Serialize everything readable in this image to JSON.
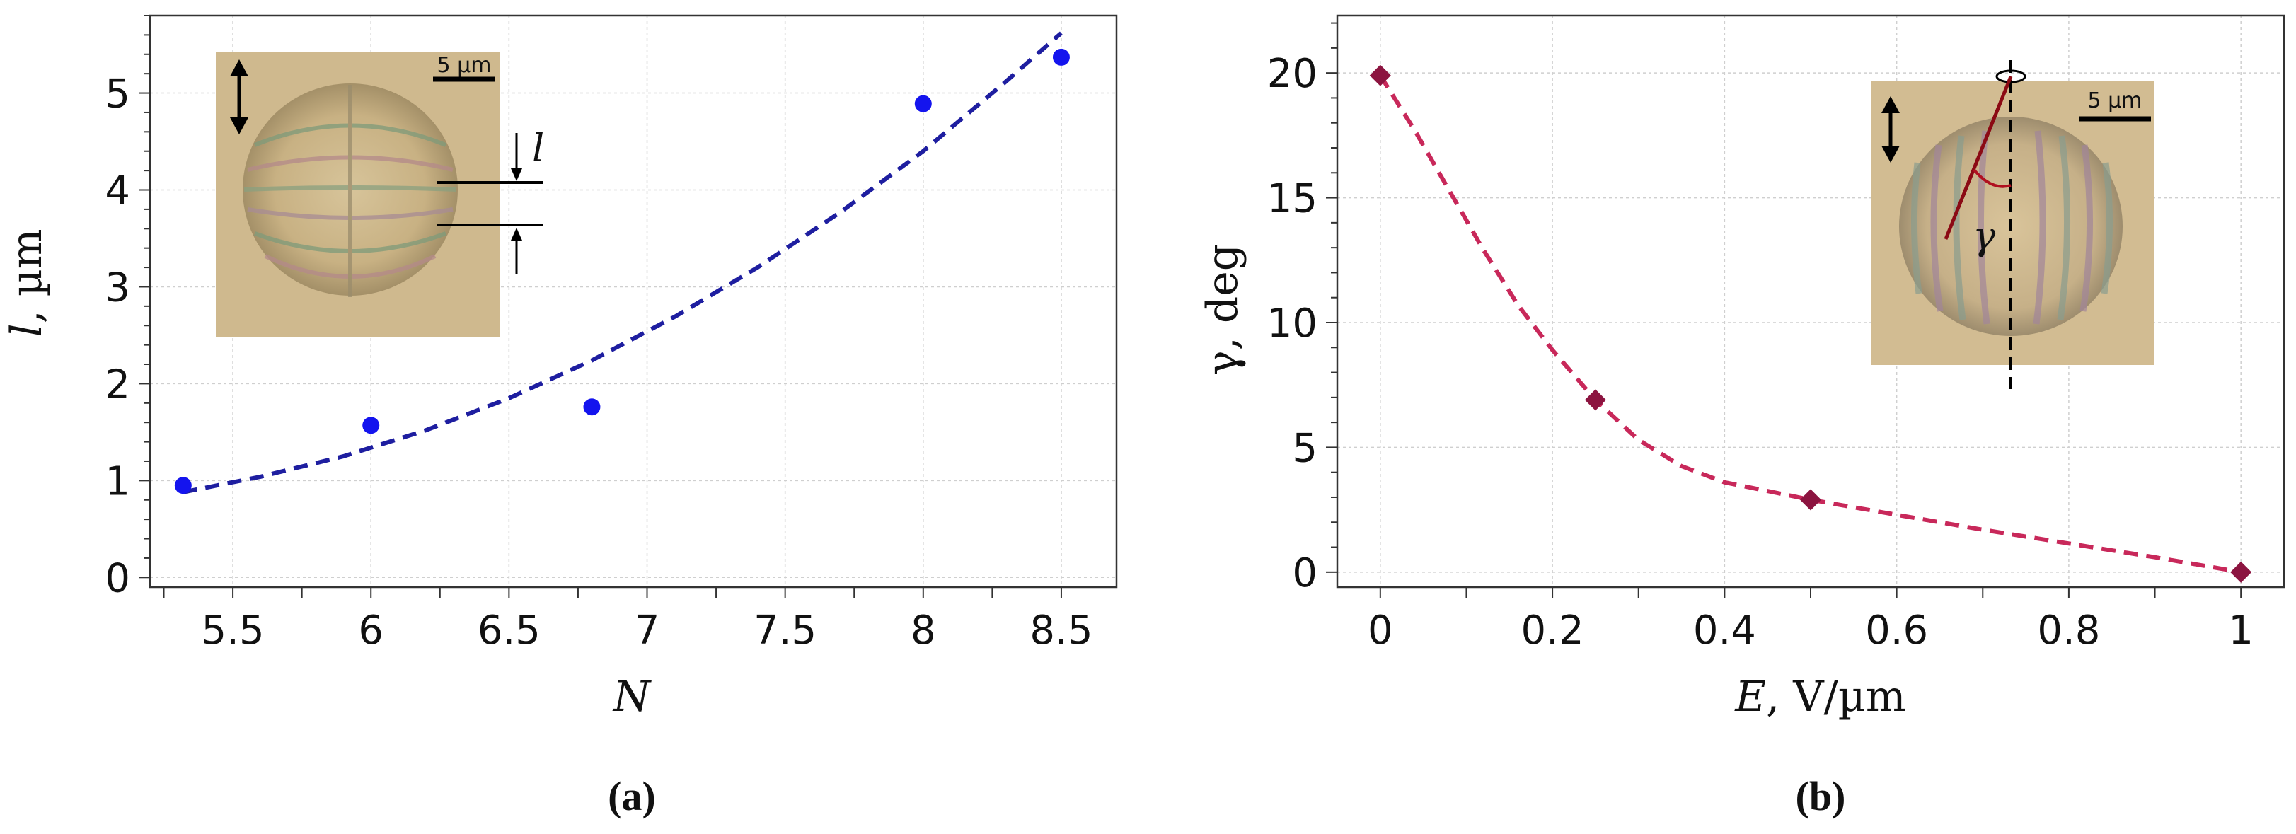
{
  "chart_data": [
    {
      "id": "a",
      "type": "scatter",
      "panel_label_prefix": "(",
      "panel_label_letter": "a",
      "panel_label_suffix": ")",
      "xlabel": "N",
      "ylabel_var": "l",
      "ylabel_unit": ", µm",
      "xlim": [
        5.2,
        8.7
      ],
      "ylim": [
        -0.1,
        5.8
      ],
      "xticks": [
        5.5,
        6,
        6.5,
        7,
        7.5,
        8,
        8.5
      ],
      "xtick_labels": [
        "5.5",
        "6",
        "6.5",
        "7",
        "7.5",
        "8",
        "8.5"
      ],
      "yticks": [
        0,
        1,
        2,
        3,
        4,
        5
      ],
      "ytick_labels": [
        "0",
        "1",
        "2",
        "3",
        "4",
        "5"
      ],
      "grid": true,
      "series": [
        {
          "kind": "points",
          "color": "#1414ee",
          "marker": "circle",
          "x": [
            5.32,
            6.0,
            6.8,
            8.0,
            8.5
          ],
          "y": [
            0.95,
            1.57,
            1.76,
            4.89,
            5.37
          ]
        },
        {
          "kind": "fit",
          "color": "#1e1ea0",
          "style": "dashed",
          "x": [
            5.32,
            5.6,
            5.9,
            6.2,
            6.5,
            6.8,
            7.1,
            7.4,
            7.7,
            8.0,
            8.3,
            8.5
          ],
          "y": [
            0.88,
            1.04,
            1.25,
            1.52,
            1.85,
            2.24,
            2.69,
            3.2,
            3.77,
            4.4,
            5.12,
            5.62
          ]
        }
      ],
      "inset": {
        "scale_label": "5 µm",
        "annotation": "l"
      }
    },
    {
      "id": "b",
      "type": "line",
      "panel_label_prefix": "(",
      "panel_label_letter": "b",
      "panel_label_suffix": ")",
      "xlabel_var": "E",
      "xlabel_unit": ", V/µm",
      "ylabel_var": "γ",
      "ylabel_unit": ", deg",
      "xlim": [
        -0.05,
        1.05
      ],
      "ylim": [
        -0.6,
        22.3
      ],
      "xticks": [
        0,
        0.2,
        0.4,
        0.6,
        0.8,
        1
      ],
      "xtick_labels": [
        "0",
        "0.2",
        "0.4",
        "0.6",
        "0.8",
        "1"
      ],
      "yticks": [
        0,
        5,
        10,
        15,
        20
      ],
      "ytick_labels": [
        "0",
        "5",
        "10",
        "15",
        "20"
      ],
      "grid": true,
      "series": [
        {
          "kind": "fit",
          "color": "#c8285a",
          "style": "dashed",
          "x": [
            0,
            0.04,
            0.08,
            0.12,
            0.16,
            0.2,
            0.25,
            0.3,
            0.35,
            0.4,
            0.5,
            0.6,
            0.7,
            0.8,
            0.9,
            1.0
          ],
          "y": [
            19.9,
            17.7,
            15.3,
            12.9,
            10.7,
            8.9,
            6.9,
            5.3,
            4.25,
            3.6,
            2.9,
            2.3,
            1.7,
            1.15,
            0.6,
            0.0
          ]
        },
        {
          "kind": "points",
          "color": "#8c1440",
          "marker": "diamond",
          "x": [
            0,
            0.25,
            0.5,
            1.0
          ],
          "y": [
            19.9,
            6.9,
            2.9,
            0.0
          ]
        }
      ],
      "inset": {
        "scale_label": "5 µm",
        "annotation": "γ"
      }
    }
  ]
}
